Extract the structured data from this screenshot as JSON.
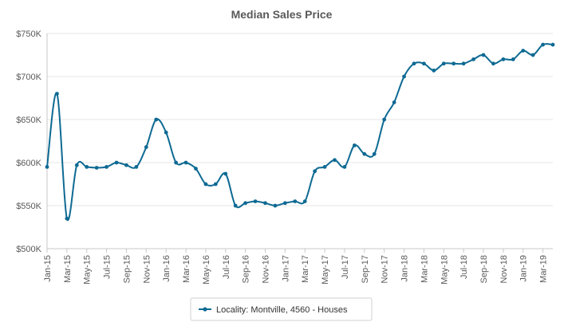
{
  "chart_data": {
    "type": "line",
    "title": "Median Sales Price",
    "xlabel": "",
    "ylabel": "",
    "ylim": [
      500000,
      750000
    ],
    "yticks": [
      {
        "value": 500000,
        "label": "$500K"
      },
      {
        "value": 550000,
        "label": "$550K"
      },
      {
        "value": 600000,
        "label": "$600K"
      },
      {
        "value": 650000,
        "label": "$650K"
      },
      {
        "value": 700000,
        "label": "$700K"
      },
      {
        "value": 750000,
        "label": "$750K"
      }
    ],
    "x": [
      "Jan-15",
      "Feb-15",
      "Mar-15",
      "Apr-15",
      "May-15",
      "Jun-15",
      "Jul-15",
      "Aug-15",
      "Sep-15",
      "Oct-15",
      "Nov-15",
      "Dec-15",
      "Jan-16",
      "Feb-16",
      "Mar-16",
      "Apr-16",
      "May-16",
      "Jun-16",
      "Jul-16",
      "Aug-16",
      "Sep-16",
      "Oct-16",
      "Nov-16",
      "Dec-16",
      "Jan-17",
      "Feb-17",
      "Mar-17",
      "Apr-17",
      "May-17",
      "Jun-17",
      "Jul-17",
      "Aug-17",
      "Sep-17",
      "Oct-17",
      "Nov-17",
      "Dec-17",
      "Jan-18",
      "Feb-18",
      "Mar-18",
      "Apr-18",
      "May-18",
      "Jun-18",
      "Jul-18",
      "Aug-18",
      "Sep-18",
      "Oct-18",
      "Nov-18",
      "Dec-18",
      "Jan-19",
      "Feb-19",
      "Mar-19",
      "Apr-19"
    ],
    "xtick_labels": [
      "Jan-15",
      "Mar-15",
      "May-15",
      "Jul-15",
      "Sep-15",
      "Nov-15",
      "Jan-16",
      "Mar-16",
      "May-16",
      "Jul-16",
      "Sep-16",
      "Nov-16",
      "Jan-17",
      "Mar-17",
      "May-17",
      "Jul-17",
      "Sep-17",
      "Nov-17",
      "Jan-18",
      "Mar-18",
      "May-18",
      "Jul-18",
      "Sep-18",
      "Nov-18",
      "Jan-19",
      "Mar-19"
    ],
    "series": [
      {
        "name": "Locality: Montville, 4560 - Houses",
        "color": "#0e6a93",
        "values": [
          595000,
          680000,
          535000,
          597000,
          595000,
          594000,
          595000,
          600000,
          597000,
          595000,
          618000,
          650000,
          635000,
          600000,
          600000,
          593000,
          575000,
          575000,
          587000,
          550000,
          553000,
          555000,
          553000,
          550000,
          553000,
          555000,
          555000,
          590000,
          595000,
          603000,
          595000,
          620000,
          610000,
          610000,
          650000,
          670000,
          700000,
          715000,
          715000,
          707000,
          715000,
          715000,
          715000,
          720000,
          725000,
          715000,
          720000,
          720000,
          730000,
          725000,
          737000,
          737000
        ]
      }
    ],
    "grid": true,
    "legend_position": "bottom-center"
  }
}
